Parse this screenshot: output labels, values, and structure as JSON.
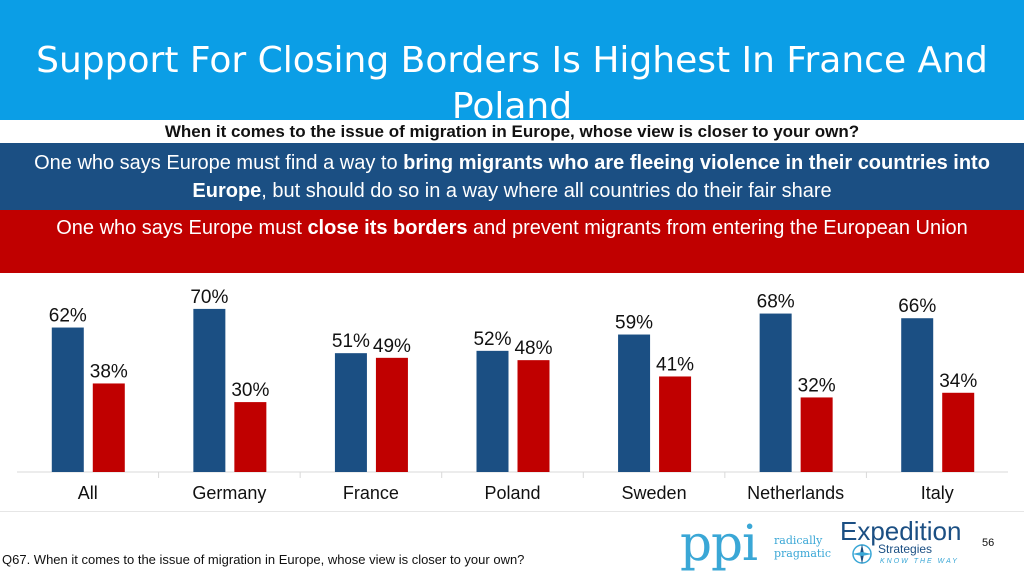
{
  "header": {
    "title": "Support For Closing Borders Is Highest In France And Poland",
    "question": "When it comes to the issue of migration in Europe, whose view is closer to your own?"
  },
  "options": {
    "blue": {
      "pre": "One who says Europe must find a way to ",
      "bold": "bring migrants who are fleeing violence in their countries into Europe",
      "post": ", but should do so in a way where all countries do their fair share"
    },
    "red": {
      "pre": "One who says Europe must ",
      "bold": "close its borders",
      "post": " and prevent migrants from entering the European Union"
    }
  },
  "colors": {
    "blue": "#1b4f83",
    "red": "#c00000",
    "title_bg": "#0b9ee6"
  },
  "chart_data": {
    "type": "bar",
    "categories": [
      "All",
      "Germany",
      "France",
      "Poland",
      "Sweden",
      "Netherlands",
      "Italy"
    ],
    "series": [
      {
        "values": [
          62,
          70,
          51,
          52,
          59,
          68,
          66
        ],
        "labels": [
          "62%",
          "70%",
          "51%",
          "52%",
          "59%",
          "68%",
          "66%"
        ],
        "color": "#1b4f83"
      },
      {
        "values": [
          38,
          30,
          49,
          48,
          41,
          32,
          34
        ],
        "labels": [
          "38%",
          "30%",
          "49%",
          "48%",
          "41%",
          "32%",
          "34%"
        ],
        "color": "#c00000"
      }
    ],
    "ylim": [
      0,
      80
    ],
    "grid": false
  },
  "footer": {
    "note": "Q67. When it comes to the issue of migration in Europe, whose view is closer to your own?",
    "page": "56"
  },
  "logos": {
    "ppi": {
      "mark": "ppi",
      "line1": "radically",
      "line2": "pragmatic"
    },
    "expedition": {
      "main": "Expedition",
      "sub": "Strategies",
      "tag": "KNOW THE WAY"
    }
  }
}
